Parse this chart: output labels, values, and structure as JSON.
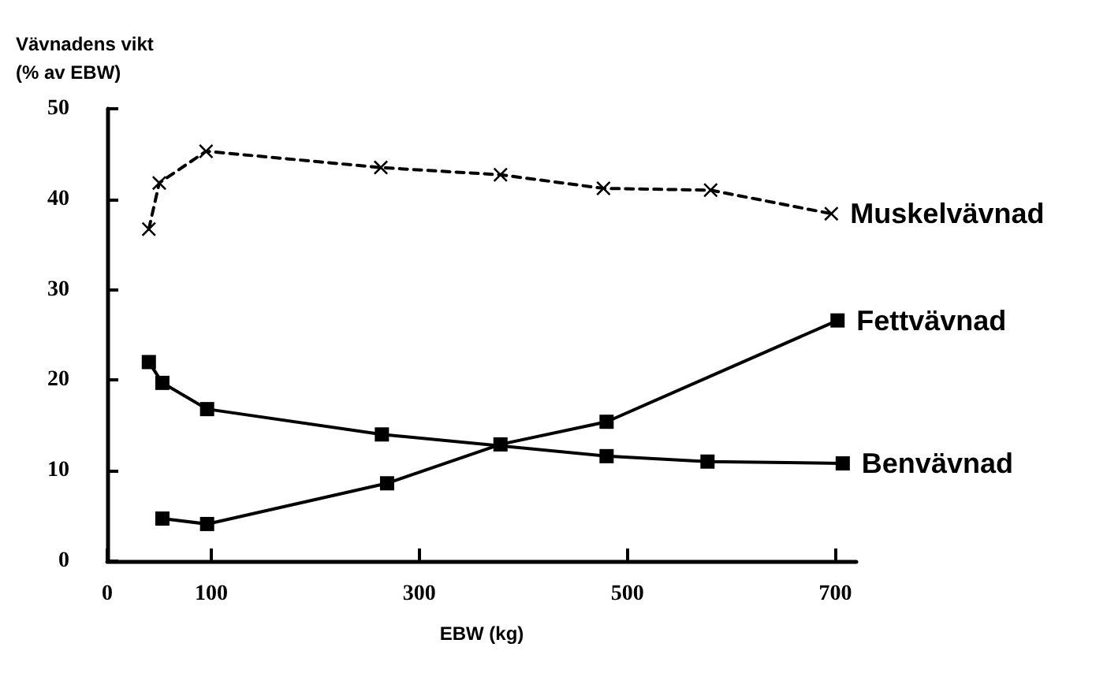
{
  "chart_data": {
    "type": "line",
    "xlabel": "EBW (kg)",
    "ylabel": "Vävnadens vikt\n(% av EBW)",
    "xlim": [
      0,
      720
    ],
    "xticks": [
      0,
      100,
      300,
      500,
      700
    ],
    "ylim": [
      0,
      50
    ],
    "yticks": [
      0,
      10,
      20,
      30,
      40,
      50
    ],
    "grid": false,
    "legend": false,
    "series": [
      {
        "name": "Muskelvävnad",
        "color": "#000000",
        "marker": "cross",
        "line_style": "dashed",
        "x": [
          40,
          50,
          95,
          263,
          378,
          477,
          580,
          696
        ],
        "values": [
          36.7,
          41.8,
          45.3,
          43.5,
          42.7,
          41.2,
          41.0,
          38.4
        ]
      },
      {
        "name": "Fettvävnad",
        "color": "#000000",
        "marker": "square",
        "line_style": "solid",
        "x": [
          53,
          96,
          269,
          378,
          480,
          702
        ],
        "values": [
          4.7,
          4.1,
          8.6,
          12.9,
          15.4,
          26.6
        ]
      },
      {
        "name": "Benvävnad",
        "color": "#000000",
        "marker": "square",
        "line_style": "solid",
        "x": [
          40,
          53,
          96,
          264,
          480,
          577,
          707
        ],
        "values": [
          22.0,
          19.7,
          16.8,
          14.0,
          11.6,
          11.0,
          10.8
        ]
      }
    ]
  }
}
